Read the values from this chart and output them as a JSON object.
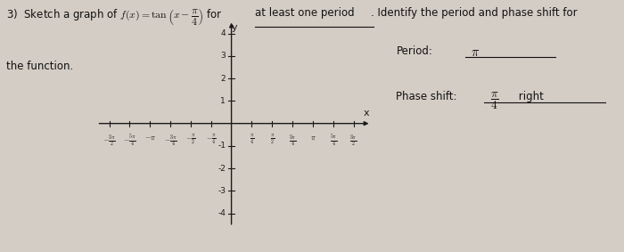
{
  "xlim": [
    -5.2,
    5.4
  ],
  "ylim": [
    -4.6,
    4.6
  ],
  "yticks": [
    -4,
    -3,
    -2,
    -1,
    1,
    2,
    3,
    4
  ],
  "bg_color": "#d4cdc5",
  "ax_color": "#1a1a1a",
  "font_size": 7.0,
  "title_fontsize": 8.5,
  "period_label": "Period:",
  "period_value": "π",
  "phase_label": "Phase shift:",
  "phase_value": "π/4 right"
}
